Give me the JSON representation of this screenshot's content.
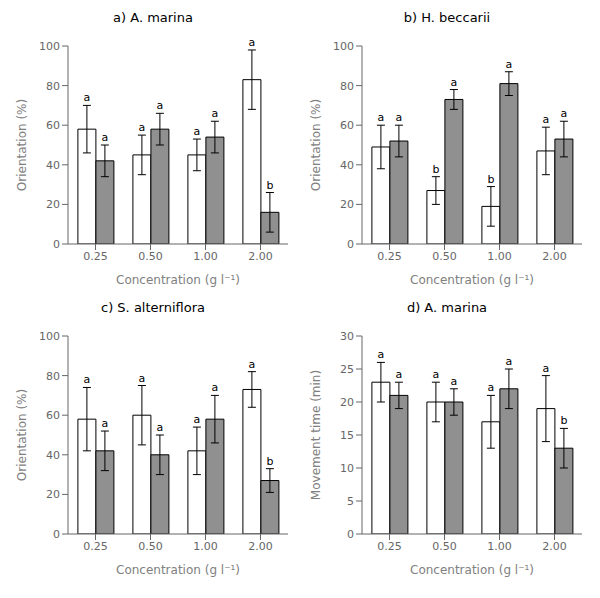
{
  "chart_data": [
    {
      "type": "bar",
      "title": "a) A. marina",
      "ylabel": "Orientation (%)",
      "xlabel": "Concentration (g l⁻¹)",
      "ylim": [
        0,
        100
      ],
      "yticks": [
        0,
        20,
        40,
        60,
        80,
        100
      ],
      "grid": false,
      "categories": [
        "0.25",
        "0.50",
        "1.00",
        "2.00"
      ],
      "series": [
        {
          "color": "#FFFFFF",
          "values": [
            58,
            45,
            45,
            83
          ],
          "errors": [
            12,
            10,
            8,
            15
          ],
          "annotations": [
            "a",
            "a",
            "a",
            "a"
          ]
        },
        {
          "color": "#909090",
          "values": [
            42,
            58,
            54,
            16
          ],
          "errors": [
            8,
            8,
            8,
            10
          ],
          "annotations": [
            "a",
            "a",
            "a",
            "b"
          ]
        }
      ]
    },
    {
      "type": "bar",
      "title": "b) H. beccarii",
      "ylabel": "Orientation (%)",
      "xlabel": "Concentration (g l⁻¹)",
      "ylim": [
        0,
        100
      ],
      "yticks": [
        0,
        20,
        40,
        60,
        80,
        100
      ],
      "grid": false,
      "categories": [
        "0.25",
        "0.50",
        "1.00",
        "2.00"
      ],
      "series": [
        {
          "color": "#FFFFFF",
          "values": [
            49,
            27,
            19,
            47
          ],
          "errors": [
            11,
            7,
            10,
            12
          ],
          "annotations": [
            "a",
            "b",
            "b",
            "a"
          ]
        },
        {
          "color": "#909090",
          "values": [
            52,
            73,
            81,
            53
          ],
          "errors": [
            8,
            5,
            6,
            9
          ],
          "annotations": [
            "a",
            "a",
            "a",
            "a"
          ]
        }
      ]
    },
    {
      "type": "bar",
      "title": "c) S. alterniflora",
      "ylabel": "Orientation (%)",
      "xlabel": "Concentration (g l⁻¹)",
      "ylim": [
        0,
        100
      ],
      "yticks": [
        0,
        20,
        40,
        60,
        80,
        100
      ],
      "grid": false,
      "categories": [
        "0.25",
        "0.50",
        "1.00",
        "2.00"
      ],
      "series": [
        {
          "color": "#FFFFFF",
          "values": [
            58,
            60,
            42,
            73
          ],
          "errors": [
            16,
            15,
            12,
            9
          ],
          "annotations": [
            "a",
            "a",
            "a",
            "a"
          ]
        },
        {
          "color": "#909090",
          "values": [
            42,
            40,
            58,
            27
          ],
          "errors": [
            10,
            10,
            12,
            6
          ],
          "annotations": [
            "a",
            "a",
            "a",
            "b"
          ]
        }
      ]
    },
    {
      "type": "bar",
      "title": "d) A. marina",
      "ylabel": "Movement time (min)",
      "xlabel": "Concentration (g l⁻¹)",
      "ylim": [
        0,
        30
      ],
      "yticks": [
        0,
        5,
        10,
        15,
        20,
        25,
        30
      ],
      "grid": false,
      "categories": [
        "0.25",
        "0.50",
        "1.00",
        "2.00"
      ],
      "series": [
        {
          "color": "#FFFFFF",
          "values": [
            23,
            20,
            17,
            19
          ],
          "errors": [
            3,
            3,
            4,
            5
          ],
          "annotations": [
            "a",
            "a",
            "a",
            "a"
          ]
        },
        {
          "color": "#909090",
          "values": [
            21,
            20,
            22,
            13
          ],
          "errors": [
            2,
            2,
            3,
            3
          ],
          "annotations": [
            "a",
            "a",
            "a",
            "b"
          ]
        }
      ]
    }
  ]
}
